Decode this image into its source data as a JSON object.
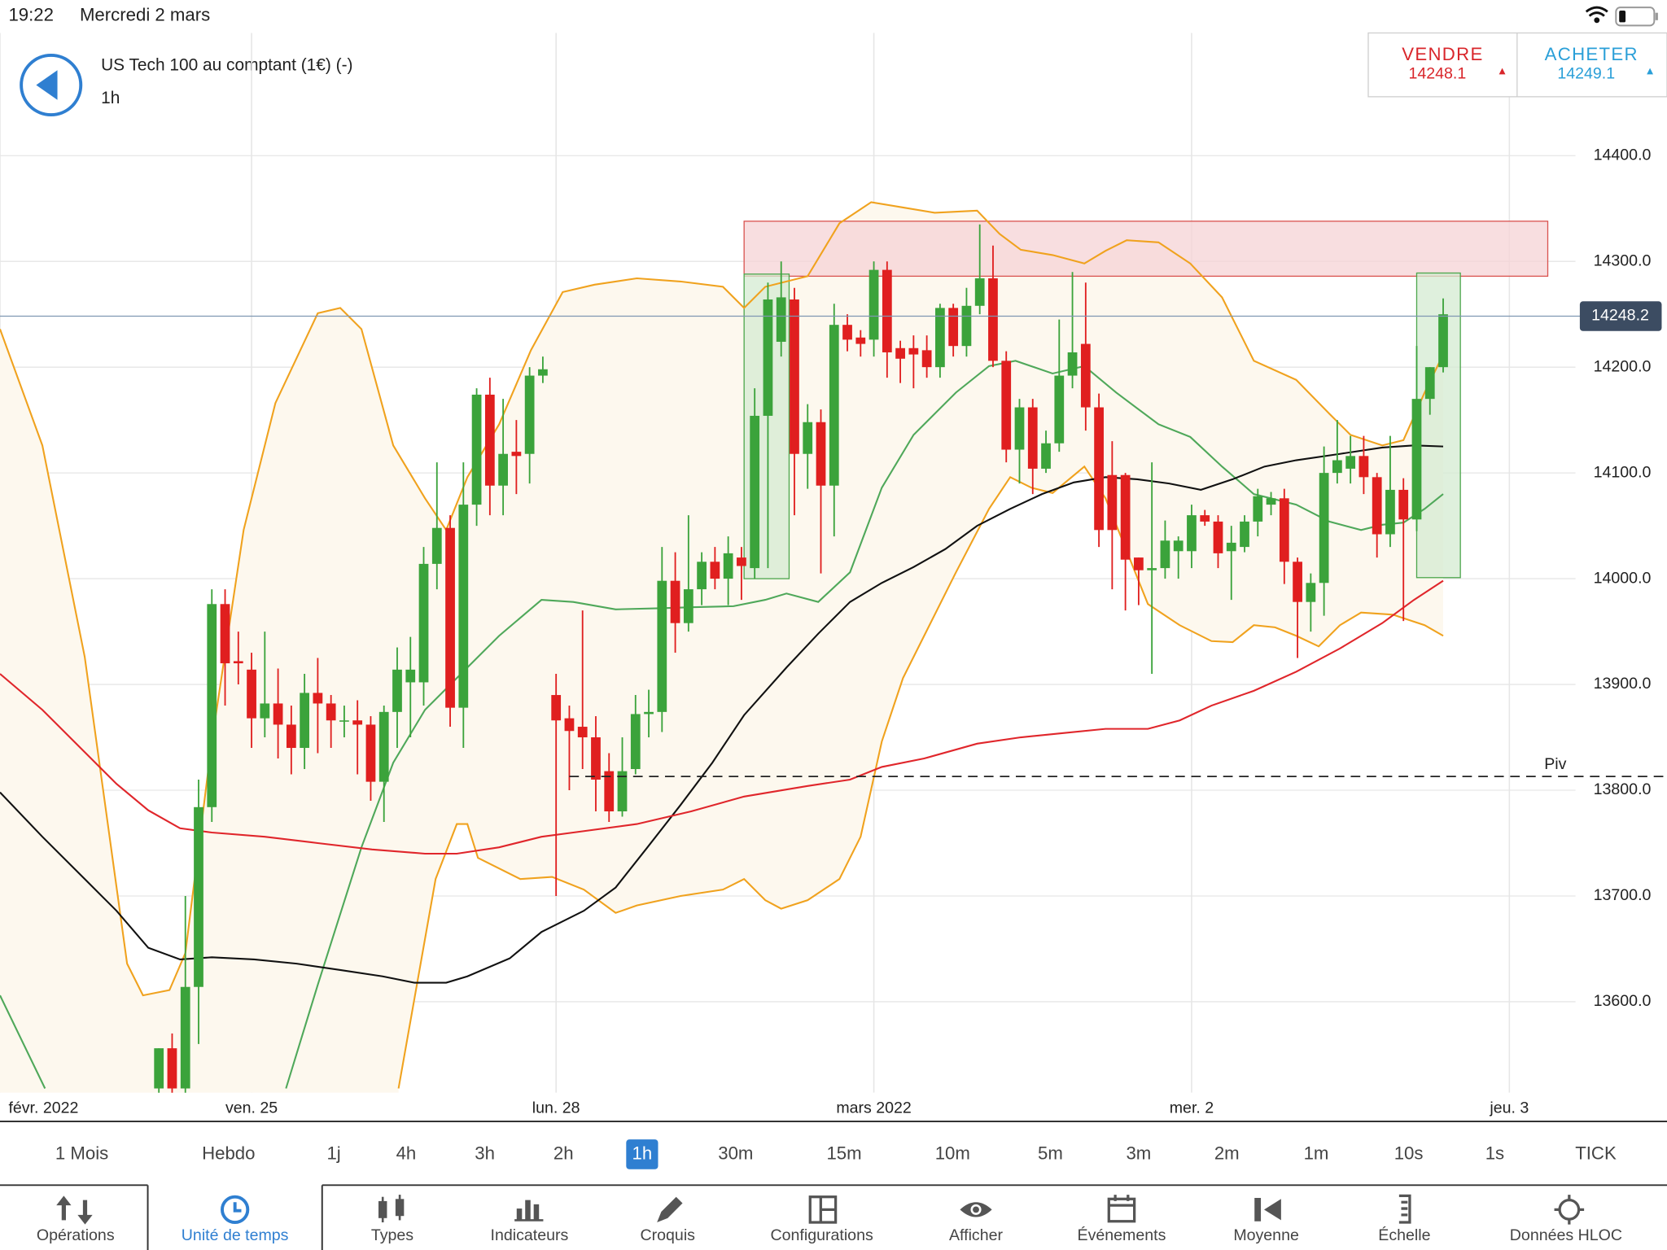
{
  "status_bar": {
    "time": "19:22",
    "date": "Mercredi 2 mars"
  },
  "header": {
    "instrument": "US Tech 100 au comptant (1€) (-)",
    "timeframe": "1h"
  },
  "quote": {
    "sell_label": "VENDRE",
    "sell_price": 14248.1,
    "buy_label": "ACHETER",
    "buy_price": 14249.1
  },
  "chart_data": {
    "type": "candlestick",
    "open": [
      13518,
      13556,
      13518,
      13614,
      13784,
      13976,
      13922,
      13914,
      13868,
      13882,
      13862,
      13840,
      13892,
      13882,
      13866,
      13866,
      13862,
      13808,
      13874,
      13902,
      13902,
      14014,
      14048,
      13878,
      14070,
      14174,
      14088,
      14120,
      14118,
      14192,
      13890,
      13868,
      13860,
      13850,
      13818,
      13780,
      13820,
      13872,
      13874,
      13998,
      13958,
      13990,
      14016,
      14000,
      14020,
      14010,
      14154,
      14224,
      14264,
      14118,
      14148,
      14088,
      14240,
      14228,
      14226,
      14292,
      14218,
      14218,
      14216,
      14200,
      14256,
      14220,
      14258,
      14284,
      14206,
      14122,
      14162,
      14104,
      14128,
      14192,
      14222,
      14162,
      14098,
      14098,
      14020,
      14008,
      14010,
      14026,
      14026,
      14060,
      14054,
      14026,
      14030,
      14054,
      14070,
      14076,
      14016,
      13978,
      13996,
      14100,
      14104,
      14116,
      14096,
      14042,
      14084,
      14056,
      14170,
      14200
    ],
    "high": [
      13556,
      13570,
      13700,
      13810,
      13990,
      13990,
      13950,
      13930,
      13950,
      13915,
      13880,
      13910,
      13925,
      13890,
      13880,
      13885,
      13870,
      13880,
      13935,
      13945,
      14030,
      14110,
      14060,
      14110,
      14180,
      14190,
      14170,
      14150,
      14200,
      14210,
      13910,
      13880,
      13970,
      13870,
      13835,
      13850,
      13890,
      13895,
      14030,
      14025,
      14060,
      14025,
      14030,
      14040,
      14030,
      14180,
      14280,
      14300,
      14275,
      14165,
      14160,
      14260,
      14250,
      14235,
      14300,
      14300,
      14225,
      14230,
      14230,
      14260,
      14260,
      14275,
      14335,
      14315,
      14215,
      14170,
      14170,
      14140,
      14245,
      14290,
      14280,
      14175,
      14130,
      14100,
      14020,
      14110,
      14055,
      14040,
      14070,
      14065,
      14060,
      14050,
      14060,
      14085,
      14082,
      14085,
      14020,
      14005,
      14125,
      14150,
      14135,
      14135,
      14100,
      14135,
      14095,
      14220,
      14200,
      14265
    ],
    "low": [
      13500,
      13500,
      13500,
      13560,
      13770,
      13880,
      13900,
      13840,
      13850,
      13830,
      13815,
      13820,
      13835,
      13840,
      13850,
      13815,
      13790,
      13770,
      13840,
      13850,
      13880,
      13990,
      13860,
      13840,
      14050,
      14060,
      14060,
      14080,
      14090,
      14185,
      13700,
      13800,
      13820,
      13780,
      13770,
      13775,
      13815,
      13850,
      13855,
      13930,
      13950,
      13975,
      13990,
      13975,
      13980,
      14000,
      14010,
      14210,
      14060,
      14085,
      14005,
      14040,
      14215,
      14210,
      14210,
      14190,
      14185,
      14180,
      14190,
      14190,
      14210,
      14210,
      14250,
      14200,
      14110,
      14090,
      14080,
      14100,
      14120,
      14180,
      14140,
      14030,
      13990,
      13970,
      13975,
      13910,
      14000,
      14000,
      14010,
      14050,
      14010,
      13980,
      14025,
      14040,
      14060,
      13995,
      13925,
      13950,
      13965,
      14090,
      14090,
      14080,
      14020,
      14030,
      13960,
      14045,
      14155,
      14195
    ],
    "close": [
      13556,
      13518,
      13614,
      13784,
      13976,
      13920,
      13920,
      13868,
      13882,
      13862,
      13840,
      13892,
      13882,
      13866,
      13866,
      13862,
      13808,
      13874,
      13914,
      13914,
      14014,
      14048,
      13878,
      14070,
      14174,
      14088,
      14118,
      14116,
      14192,
      14198,
      13866,
      13856,
      13850,
      13810,
      13780,
      13818,
      13872,
      13874,
      13998,
      13958,
      13990,
      14016,
      14000,
      14024,
      14012,
      14154,
      14264,
      14266,
      14118,
      14148,
      14088,
      14240,
      14226,
      14222,
      14292,
      14214,
      14208,
      14212,
      14200,
      14256,
      14220,
      14258,
      14284,
      14206,
      14122,
      14162,
      14104,
      14128,
      14192,
      14214,
      14162,
      14046,
      14046,
      14018,
      14008,
      14010,
      14036,
      14036,
      14060,
      14054,
      14024,
      14034,
      14054,
      14078,
      14076,
      14016,
      13978,
      13996,
      14100,
      14112,
      14116,
      14096,
      14042,
      14084,
      14056,
      14170,
      14200,
      14250
    ],
    "up_color": "#3ba33b",
    "down_color": "#e01f1f",
    "ylim": [
      13514,
      14516
    ],
    "yticks": [
      {
        "value": 13600,
        "label": "13600.0"
      },
      {
        "value": 13700,
        "label": "13700.0"
      },
      {
        "value": 13800,
        "label": "13800.0"
      },
      {
        "value": 13900,
        "label": "13900.0"
      },
      {
        "value": 14000,
        "label": "14000.0"
      },
      {
        "value": 14100,
        "label": "14100.0"
      },
      {
        "value": 14200,
        "label": "14200.0"
      },
      {
        "value": 14300,
        "label": "14300.0"
      },
      {
        "value": 14400,
        "label": "14400.0"
      }
    ],
    "xlim": [
      -12,
      107
    ],
    "xticks": [
      {
        "value": -12,
        "label": "févr. 2022"
      },
      {
        "value": 7,
        "label": "ven. 25"
      },
      {
        "value": 30,
        "label": "lun. 28"
      },
      {
        "value": 54,
        "label": "mars 2022"
      },
      {
        "value": 78,
        "label": "mer. 2"
      },
      {
        "value": 102,
        "label": "jeu. 3"
      }
    ],
    "grid": true,
    "band_fill": "#fdf8ee",
    "lines": [
      {
        "color": "#f0a21e",
        "x": [
          -12,
          -8.8,
          -5.6,
          -2.4,
          -1.2,
          0.8,
          2,
          4,
          6.4,
          8.8,
          12,
          13.7,
          15.3,
          17.7,
          20.1,
          21.7,
          23.3,
          25.7,
          28.1,
          30.5,
          32.9,
          36.1,
          39.4,
          42.6,
          44.2,
          45.8,
          49,
          51.4,
          53.8,
          56.2,
          58.6,
          61.8,
          63.5,
          65.1,
          67.5,
          69.9,
          71.5,
          73.1,
          75.5,
          77.9,
          80.3,
          82.7,
          85.9,
          88.4,
          90,
          92.4,
          94,
          95.6,
          97
        ],
        "values": [
          14236,
          14126,
          13926,
          13636,
          13606,
          13611,
          13646,
          13846,
          14046,
          14166,
          14251,
          14256,
          14236,
          14126,
          14076,
          14046,
          14096,
          14146,
          14216,
          14271,
          14278,
          14284,
          14281,
          14276,
          14256,
          14276,
          14286,
          14336,
          14356,
          14351,
          14346,
          14348,
          14326,
          14311,
          14306,
          14298,
          14310,
          14320,
          14318,
          14298,
          14266,
          14206,
          14188,
          14156,
          14136,
          14126,
          14131,
          14176,
          14212
        ]
      },
      {
        "color": "#f0a21e",
        "x": [
          18.1,
          20.9,
          22.5,
          23.3,
          24.1,
          27.3,
          29.7,
          32.1,
          34.5,
          36.1,
          39.4,
          42.6,
          44.2,
          45.8,
          47,
          49,
          51.4,
          53,
          54.6,
          56.2,
          57.8,
          60.2,
          62.7,
          64.3,
          65.9,
          67.5,
          69.9,
          71.5,
          73.1,
          74.7,
          77.1,
          79.5,
          81.1,
          82.7,
          84.3,
          85.9,
          87.6,
          89.2,
          90.8,
          93.2,
          95.6,
          97
        ],
        "values": [
          13518,
          13716,
          13768,
          13768,
          13736,
          13716,
          13718,
          13706,
          13684,
          13691,
          13700,
          13706,
          13716,
          13696,
          13688,
          13696,
          13716,
          13756,
          13846,
          13906,
          13946,
          14006,
          14066,
          14096,
          14086,
          14081,
          14106,
          14076,
          14026,
          13976,
          13956,
          13941,
          13940,
          13956,
          13954,
          13946,
          13936,
          13956,
          13968,
          13966,
          13956,
          13946
        ]
      },
      {
        "color": "#4fa85a",
        "x": [
          -12,
          -8.6,
          null,
          9.6,
          12,
          15.3,
          17.7,
          20.1,
          22.5,
          25.7,
          28.9,
          31.3,
          34.5,
          37.8,
          40.2,
          43.4,
          45.8,
          47.4,
          49.8,
          52.2,
          54.6,
          57,
          60.2,
          62.7,
          64.7,
          67.5,
          69.9,
          72.3,
          75.5,
          77.9,
          80.3,
          82.7,
          85.9,
          88.4,
          90.8,
          92.4,
          94,
          95.6,
          97
        ],
        "values": [
          13606,
          13518,
          null,
          13518,
          13616,
          13746,
          13826,
          13876,
          13906,
          13946,
          13980,
          13978,
          13971,
          13972,
          13973,
          13974,
          13980,
          13986,
          13978,
          14006,
          14086,
          14136,
          14176,
          14201,
          14206,
          14194,
          14201,
          14176,
          14146,
          14134,
          14106,
          14080,
          14070,
          14054,
          14046,
          14051,
          14053,
          14066,
          14080
        ]
      },
      {
        "color": "#111111",
        "x": [
          -12,
          -8.8,
          -5.6,
          -3.2,
          -0.8,
          1.6,
          4,
          7.2,
          10.4,
          13.7,
          16.9,
          19.3,
          21.7,
          23.3,
          26.5,
          28.9,
          32.1,
          34.5,
          36.9,
          39.4,
          41.8,
          44.2,
          47.4,
          49.8,
          52.2,
          54.6,
          57,
          59.4,
          61.8,
          64.3,
          66.7,
          69.1,
          71.5,
          73.9,
          76.3,
          78.7,
          81.1,
          83.5,
          85.9,
          89.2,
          92.4,
          94.8,
          97
        ],
        "values": [
          13798,
          13756,
          13716,
          13686,
          13651,
          13640,
          13642,
          13640,
          13636,
          13630,
          13624,
          13618,
          13618,
          13624,
          13641,
          13666,
          13686,
          13708,
          13746,
          13786,
          13826,
          13871,
          13916,
          13948,
          13978,
          13996,
          14011,
          14028,
          14050,
          14066,
          14080,
          14091,
          14096,
          14094,
          14090,
          14084,
          14094,
          14106,
          14112,
          14118,
          14124,
          14126,
          14125
        ]
      },
      {
        "color": "#e0262b",
        "x": [
          -12,
          -8.8,
          -5.6,
          -3.2,
          -0.8,
          1.6,
          4,
          8,
          12,
          16.1,
          20.1,
          22.5,
          25.7,
          28.9,
          31.3,
          36.1,
          40.2,
          44.2,
          49,
          52.2,
          54.6,
          57.8,
          61.8,
          65.1,
          68.3,
          71.5,
          74.7,
          77.1,
          79.5,
          82.7,
          85.9,
          89.2,
          92.4,
          94.8,
          97
        ],
        "values": [
          13910,
          13876,
          13836,
          13806,
          13781,
          13764,
          13760,
          13756,
          13750,
          13744,
          13740,
          13740,
          13746,
          13756,
          13760,
          13768,
          13780,
          13794,
          13804,
          13810,
          13822,
          13830,
          13844,
          13850,
          13854,
          13858,
          13858,
          13866,
          13880,
          13894,
          13912,
          13934,
          13958,
          13980,
          13998
        ]
      }
    ],
    "zones": [
      {
        "fill": "#f6d3d5",
        "stroke": "#d9534f",
        "x": [
          44.2,
          104.9
        ],
        "y": [
          14286,
          14338
        ]
      },
      {
        "fill": "#d4ebd2",
        "stroke": "#4ca64c",
        "x": [
          44.2,
          47.6
        ],
        "y": [
          14000,
          14288
        ]
      },
      {
        "fill": "#d4ebd2",
        "stroke": "#4ca64c",
        "x": [
          95,
          98.3
        ],
        "y": [
          14001,
          14289
        ]
      }
    ],
    "last_price": 14248.2,
    "pivot": {
      "label": "Piv",
      "value": 13813,
      "start": 31
    }
  },
  "timeframes": {
    "items": [
      "1 Mois",
      "Hebdo",
      "1j",
      "4h",
      "3h",
      "2h",
      "1h",
      "30m",
      "15m",
      "10m",
      "5m",
      "3m",
      "2m",
      "1m",
      "10s",
      "1s",
      "TICK"
    ],
    "selected": 6
  },
  "toolbar": {
    "items": [
      "Opérations",
      "Unité de temps",
      "Types",
      "Indicateurs",
      "Croquis",
      "Configurations",
      "Afficher",
      "Événements",
      "Moyenne",
      "Échelle",
      "Données HLOC"
    ],
    "selected": 1
  }
}
